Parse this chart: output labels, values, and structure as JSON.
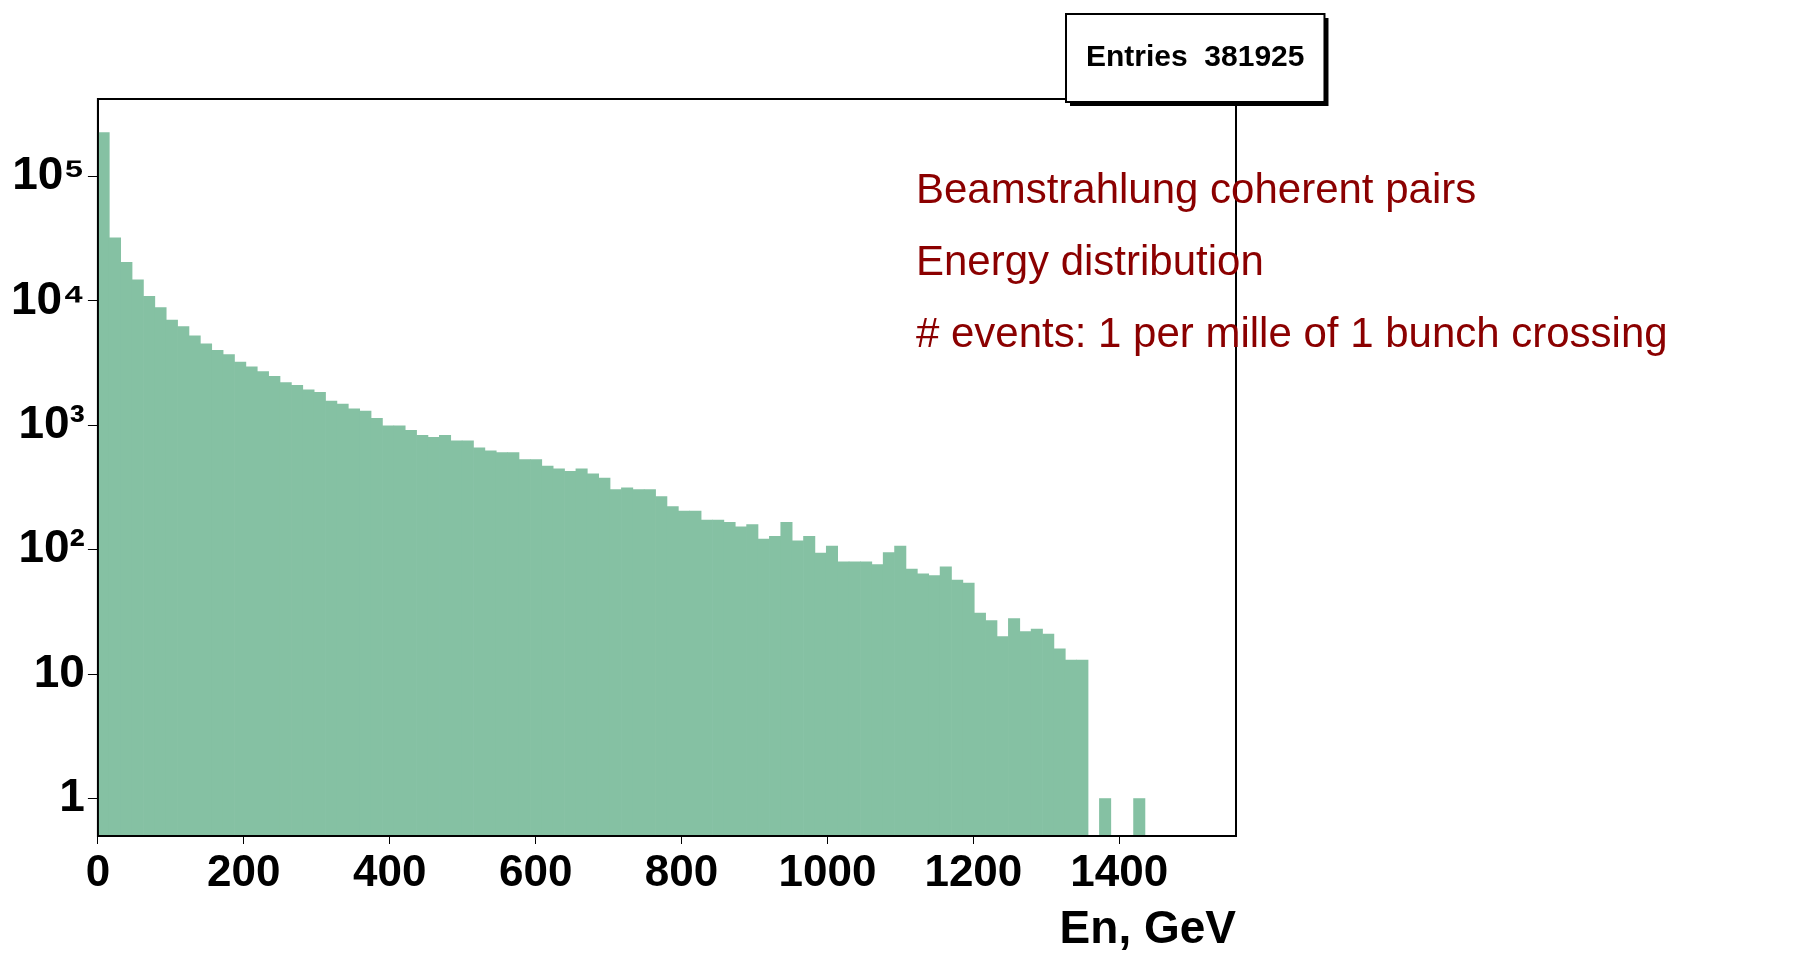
{
  "chart_data": {
    "type": "histogram",
    "xlabel": "En, GeV",
    "color": "#85c1a3",
    "bins": [
      0,
      15.6,
      31.2,
      46.8,
      62.4,
      78,
      93.6,
      109.2,
      124.8,
      140.4,
      156,
      171.6,
      187.2,
      202.8,
      218.4,
      234,
      249.6,
      265.2,
      280.8,
      296.4,
      312,
      327.6,
      343.2,
      358.8,
      374.4,
      390,
      405.6,
      421.2,
      436.8,
      452.4,
      468,
      483.6,
      499.2,
      514.8,
      530.4,
      546,
      561.6,
      577.2,
      592.8,
      608.4,
      624,
      639.6,
      655.2,
      670.8,
      686.4,
      702,
      717.6,
      733.2,
      748.8,
      764.4,
      780,
      795.6,
      811.2,
      826.8,
      842.4,
      858,
      873.6,
      889.2,
      904.8,
      920.4,
      936,
      951.6,
      967.2,
      982.8,
      998.4,
      1014,
      1029.6,
      1045.2,
      1060.8,
      1076.4,
      1092,
      1107.6,
      1123.2,
      1138.8,
      1154.4,
      1170,
      1185.6,
      1201.2,
      1216.8,
      1232.4,
      1248,
      1263.6,
      1279.2,
      1294.8,
      1310.4,
      1326,
      1341.6,
      1357.2,
      1372.8,
      1388.4,
      1404,
      1419.6,
      1435.2,
      1450.8,
      1466.4,
      1482,
      1497.6,
      1513.2,
      1528.8,
      1544.4,
      1560
    ],
    "values": [
      226000,
      32200,
      20400,
      14800,
      10900,
      8850,
      7020,
      6220,
      5240,
      4530,
      4010,
      3700,
      3220,
      2960,
      2700,
      2480,
      2210,
      2100,
      1930,
      1840,
      1570,
      1480,
      1360,
      1300,
      1140,
      990,
      990,
      910,
      830,
      800,
      830,
      750,
      750,
      660,
      625,
      605,
      605,
      530,
      530,
      470,
      447,
      426,
      447,
      408,
      377,
      305,
      314,
      305,
      305,
      267,
      222,
      205,
      205,
      173,
      173,
      166,
      153,
      159,
      122,
      128,
      166,
      118,
      128,
      94,
      107,
      80,
      80,
      80,
      76,
      95,
      107,
      70,
      64,
      62,
      73,
      57,
      54,
      31,
      27,
      20,
      28,
      22,
      23,
      21,
      16,
      13,
      13,
      null,
      1,
      null,
      null,
      1,
      null,
      null,
      null,
      null,
      null,
      null,
      null,
      null
    ],
    "xlim": [
      0,
      1560
    ],
    "xticks": [
      0,
      200,
      400,
      600,
      800,
      1000,
      1200,
      1400
    ],
    "ylim": [
      0.5,
      420000
    ],
    "log": true,
    "yticks": [
      1,
      10,
      {
        "value": 100,
        "label": "10²"
      },
      {
        "value": 1000,
        "label": "10³"
      },
      {
        "value": 10000,
        "label": "10⁴"
      },
      {
        "value": 100000,
        "label": "10⁵"
      }
    ],
    "annotations": [
      "Entries  381925",
      "Beamstrahlung coherent pairs",
      "Energy distribution",
      "# events: 1 per mille of 1 bunch crossing"
    ]
  }
}
